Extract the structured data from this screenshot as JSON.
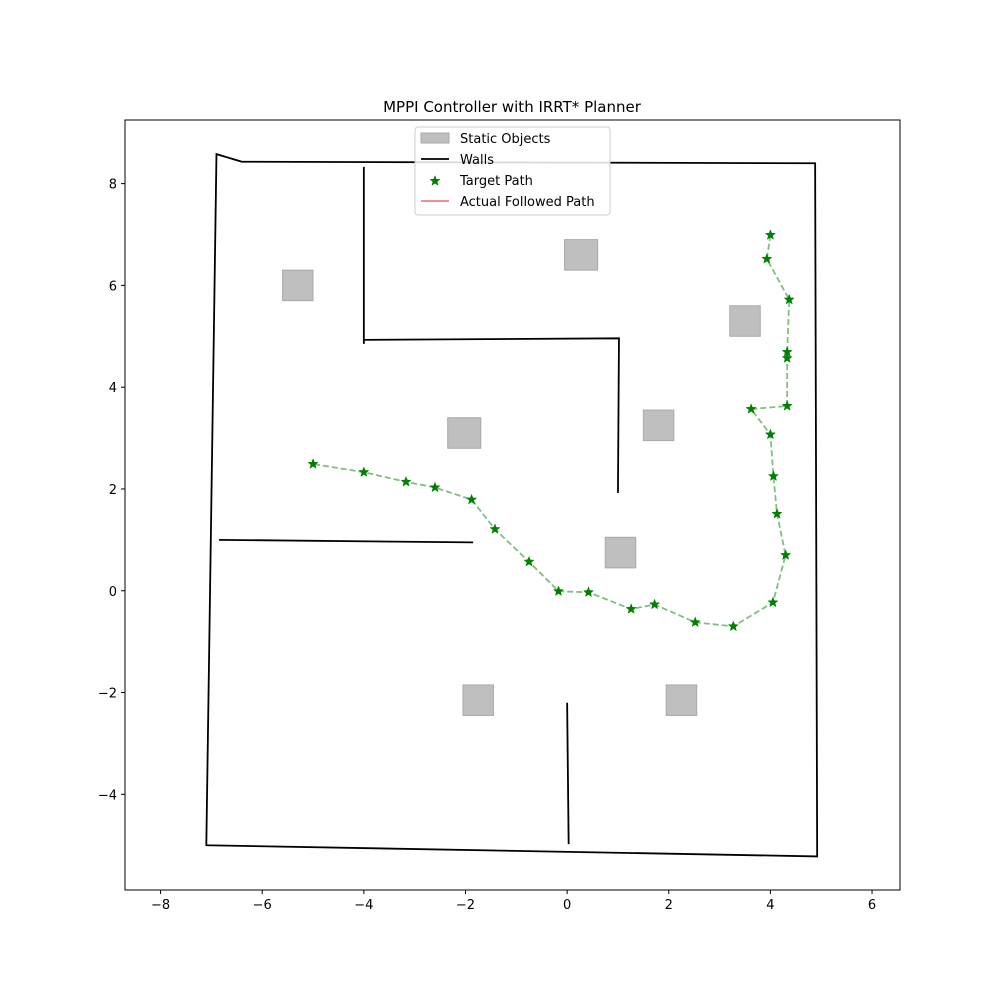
{
  "chart_data": {
    "type": "scatter",
    "title": "MPPI Controller with IRRT* Planner",
    "xlabel": "",
    "ylabel": "",
    "xlim": [
      -8.7,
      6.55
    ],
    "ylim": [
      -5.88,
      9.25
    ],
    "xticks": [
      -8,
      -6,
      -4,
      -2,
      0,
      2,
      4,
      6
    ],
    "yticks": [
      -4,
      -2,
      0,
      2,
      4,
      6,
      8
    ],
    "xtick_labels": [
      "−8",
      "−6",
      "−4",
      "−2",
      "0",
      "2",
      "4",
      "6"
    ],
    "ytick_labels": [
      "−4",
      "−2",
      "0",
      "2",
      "4",
      "6",
      "8"
    ],
    "grid": false,
    "legend_position": "top-center",
    "legend": [
      {
        "label": "Static Objects",
        "kind": "patch",
        "color": "#bfbfbf"
      },
      {
        "label": "Walls",
        "kind": "line",
        "color": "#000000"
      },
      {
        "label": "Target Path",
        "kind": "marker",
        "color": "#008000"
      },
      {
        "label": "Actual Followed Path",
        "kind": "line",
        "color": "#f08080"
      }
    ],
    "static_objects": [
      {
        "x": [
          -5.6,
          -5.0
        ],
        "y": [
          5.7,
          6.3
        ]
      },
      {
        "x": [
          -0.05,
          0.6
        ],
        "y": [
          6.3,
          6.9
        ]
      },
      {
        "x": [
          3.2,
          3.8
        ],
        "y": [
          5.0,
          5.6
        ]
      },
      {
        "x": [
          -2.35,
          -1.7
        ],
        "y": [
          2.8,
          3.4
        ]
      },
      {
        "x": [
          1.5,
          2.1
        ],
        "y": [
          2.95,
          3.55
        ]
      },
      {
        "x": [
          0.75,
          1.35
        ],
        "y": [
          0.45,
          1.05
        ]
      },
      {
        "x": [
          -2.05,
          -1.45
        ],
        "y": [
          -2.45,
          -1.85
        ]
      },
      {
        "x": [
          1.95,
          2.55
        ],
        "y": [
          -2.45,
          -1.85
        ]
      }
    ],
    "walls": [
      {
        "x": [
          -6.4,
          -6.9,
          -7.1,
          4.92,
          4.88,
          -6.4
        ],
        "y": [
          8.43,
          8.58,
          -5.0,
          -5.22,
          8.4,
          8.43
        ]
      },
      {
        "x": [
          -4.0,
          -4.0
        ],
        "y": [
          8.33,
          4.85
        ]
      },
      {
        "x": [
          -4.0,
          1.02,
          1.0
        ],
        "y": [
          4.93,
          4.96,
          1.92
        ]
      },
      {
        "x": [
          -6.85,
          -1.85
        ],
        "y": [
          1.0,
          0.95
        ]
      },
      {
        "x": [
          0.0,
          0.03
        ],
        "y": [
          -2.2,
          -4.98
        ]
      }
    ],
    "target_path": {
      "color": "#008000",
      "x": [
        4.0,
        3.93,
        4.37,
        4.33,
        4.33,
        4.33,
        3.62,
        4.0,
        4.06,
        4.13,
        4.3,
        4.05,
        3.27,
        2.52,
        1.72,
        1.26,
        0.42,
        -0.17,
        -0.75,
        -1.42,
        -1.88,
        -2.6,
        -3.17,
        -4.0,
        -5.0
      ],
      "y": [
        6.99,
        6.52,
        5.72,
        4.69,
        4.57,
        3.63,
        3.57,
        3.07,
        2.25,
        1.51,
        0.7,
        -0.23,
        -0.7,
        -0.62,
        -0.27,
        -0.36,
        -0.03,
        -0.01,
        0.57,
        1.21,
        1.79,
        2.03,
        2.14,
        2.33,
        2.49
      ]
    },
    "actual_path": {
      "color": "#f08080",
      "x": [],
      "y": []
    }
  }
}
